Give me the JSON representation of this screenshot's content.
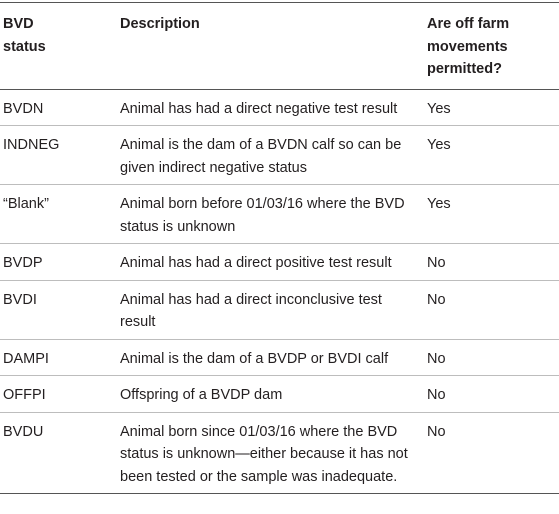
{
  "table": {
    "headers": [
      "BVD status",
      "Description",
      "Are off farm movements permitted?"
    ],
    "rows": [
      [
        "BVDN",
        "Animal has had a direct negative test result",
        "Yes"
      ],
      [
        "INDNEG",
        "Animal is the dam of a BVDN calf so can be given indirect negative status",
        "Yes"
      ],
      [
        "“Blank”",
        "Animal born before 01/03/16 where the BVD status is unknown",
        "Yes"
      ],
      [
        "BVDP",
        "Animal has had a direct positive test result",
        "No"
      ],
      [
        "BVDI",
        "Animal has had a direct inconclusive test result",
        "No"
      ],
      [
        "DAMPI",
        "Animal is the dam of a BVDP or BVDI calf",
        "No"
      ],
      [
        "OFFPI",
        "Offspring of a BVDP dam",
        "No"
      ],
      [
        "BVDU",
        "Animal born since 01/03/16 where the BVD status is unknown—either because it has not been tested or the sample was inadequate.",
        "No"
      ]
    ]
  }
}
